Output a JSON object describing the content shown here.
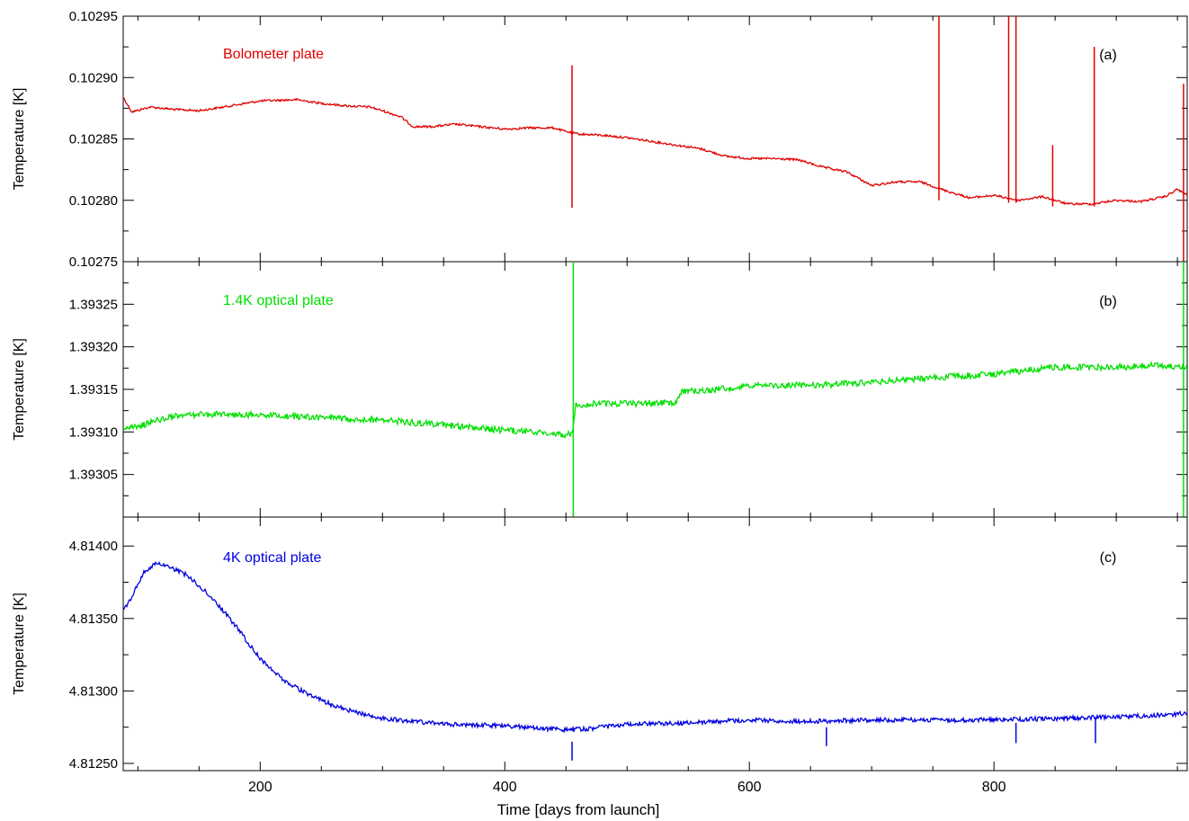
{
  "xlabel": "Time [days from launch]",
  "x_tick_labels": [
    "200",
    "400",
    "600",
    "800"
  ],
  "chart_data": [
    {
      "type": "line",
      "panel": "(a)",
      "series_label": "Bolometer plate",
      "color": "#e00000",
      "ylabel": "Temperature [K]",
      "xlim": [
        88,
        958
      ],
      "ylim": [
        0.10275,
        0.10295
      ],
      "ytick_labels": [
        "0.10275",
        "0.10280",
        "0.10285",
        "0.10290",
        "0.10295"
      ],
      "points": [
        [
          88,
          0.102884
        ],
        [
          95,
          0.102872
        ],
        [
          110,
          0.102876
        ],
        [
          130,
          0.102874
        ],
        [
          150,
          0.102873
        ],
        [
          170,
          0.102876
        ],
        [
          200,
          0.102881
        ],
        [
          230,
          0.102882
        ],
        [
          250,
          0.102879
        ],
        [
          270,
          0.102877
        ],
        [
          290,
          0.102876
        ],
        [
          300,
          0.102873
        ],
        [
          315,
          0.102868
        ],
        [
          325,
          0.10286
        ],
        [
          340,
          0.10286
        ],
        [
          360,
          0.102862
        ],
        [
          380,
          0.10286
        ],
        [
          400,
          0.102858
        ],
        [
          420,
          0.102859
        ],
        [
          440,
          0.102859
        ],
        [
          450,
          0.102856
        ],
        [
          460,
          0.102854
        ],
        [
          480,
          0.102853
        ],
        [
          500,
          0.102851
        ],
        [
          520,
          0.102848
        ],
        [
          540,
          0.102845
        ],
        [
          560,
          0.102842
        ],
        [
          580,
          0.102836
        ],
        [
          600,
          0.102834
        ],
        [
          620,
          0.102834
        ],
        [
          640,
          0.102833
        ],
        [
          660,
          0.102827
        ],
        [
          680,
          0.102823
        ],
        [
          700,
          0.102812
        ],
        [
          720,
          0.102815
        ],
        [
          740,
          0.102815
        ],
        [
          760,
          0.102808
        ],
        [
          780,
          0.102802
        ],
        [
          800,
          0.102804
        ],
        [
          820,
          0.1028
        ],
        [
          840,
          0.102803
        ],
        [
          860,
          0.102797
        ],
        [
          880,
          0.102797
        ],
        [
          900,
          0.1028
        ],
        [
          920,
          0.102799
        ],
        [
          940,
          0.102803
        ],
        [
          950,
          0.102809
        ],
        [
          958,
          0.102804
        ]
      ],
      "spikes": [
        [
          455,
          0.10291,
          0.102794
        ],
        [
          755,
          0.10295,
          0.1028
        ],
        [
          812,
          0.10295,
          0.102798
        ],
        [
          818,
          0.10295,
          0.102798
        ],
        [
          848,
          0.102845,
          0.102795
        ],
        [
          882,
          0.102925,
          0.102795
        ],
        [
          955,
          0.102895,
          0.10275
        ]
      ]
    },
    {
      "type": "line",
      "panel": "(b)",
      "series_label": "1.4K optical plate",
      "color": "#00e000",
      "ylabel": "Temperature [K]",
      "xlim": [
        88,
        958
      ],
      "ylim": [
        1.393,
        1.3933
      ],
      "ytick_labels": [
        "1.39305",
        "1.39310",
        "1.39315",
        "1.39320",
        "1.39325"
      ],
      "points": [
        [
          88,
          1.393105
        ],
        [
          100,
          1.393105
        ],
        [
          110,
          1.393112
        ],
        [
          130,
          1.393118
        ],
        [
          150,
          1.393121
        ],
        [
          200,
          1.39312
        ],
        [
          250,
          1.393117
        ],
        [
          300,
          1.393114
        ],
        [
          350,
          1.393108
        ],
        [
          400,
          1.393102
        ],
        [
          430,
          1.393099
        ],
        [
          450,
          1.393097
        ],
        [
          455,
          1.393097
        ],
        [
          458,
          1.393132
        ],
        [
          480,
          1.393133
        ],
        [
          500,
          1.393133
        ],
        [
          540,
          1.393135
        ],
        [
          545,
          1.393148
        ],
        [
          560,
          1.393148
        ],
        [
          600,
          1.393154
        ],
        [
          650,
          1.393155
        ],
        [
          700,
          1.393158
        ],
        [
          750,
          1.393164
        ],
        [
          800,
          1.393168
        ],
        [
          850,
          1.393176
        ],
        [
          900,
          1.393176
        ],
        [
          930,
          1.393178
        ],
        [
          950,
          1.393176
        ],
        [
          958,
          1.393175
        ]
      ],
      "spikes": [
        [
          456,
          1.3933,
          1.393
        ],
        [
          955,
          1.3933,
          1.393
        ]
      ]
    },
    {
      "type": "line",
      "panel": "(c)",
      "series_label": "4K optical plate",
      "color": "#0000e0",
      "ylabel": "Temperature [K]",
      "xlim": [
        88,
        958
      ],
      "ylim": [
        4.81245,
        4.8142
      ],
      "ytick_labels": [
        "4.81250",
        "4.81300",
        "4.81350",
        "4.81400"
      ],
      "points": [
        [
          88,
          4.81355
        ],
        [
          95,
          4.81365
        ],
        [
          105,
          4.81382
        ],
        [
          115,
          4.81388
        ],
        [
          130,
          4.81384
        ],
        [
          140,
          4.8138
        ],
        [
          160,
          4.81365
        ],
        [
          180,
          4.81345
        ],
        [
          200,
          4.81322
        ],
        [
          220,
          4.81307
        ],
        [
          240,
          4.81297
        ],
        [
          260,
          4.8129
        ],
        [
          280,
          4.81285
        ],
        [
          300,
          4.81281
        ],
        [
          350,
          4.81277
        ],
        [
          400,
          4.81276
        ],
        [
          450,
          4.81273
        ],
        [
          470,
          4.81274
        ],
        [
          500,
          4.81277
        ],
        [
          550,
          4.81278
        ],
        [
          600,
          4.8128
        ],
        [
          650,
          4.81279
        ],
        [
          700,
          4.8128
        ],
        [
          750,
          4.8128
        ],
        [
          800,
          4.8128
        ],
        [
          850,
          4.81281
        ],
        [
          900,
          4.81282
        ],
        [
          950,
          4.81284
        ],
        [
          958,
          4.81285
        ]
      ],
      "spikes": [
        [
          455,
          4.81265,
          4.81252
        ],
        [
          663,
          4.81275,
          4.81262
        ],
        [
          818,
          4.81278,
          4.81264
        ],
        [
          883,
          4.81282,
          4.81264
        ]
      ]
    }
  ]
}
